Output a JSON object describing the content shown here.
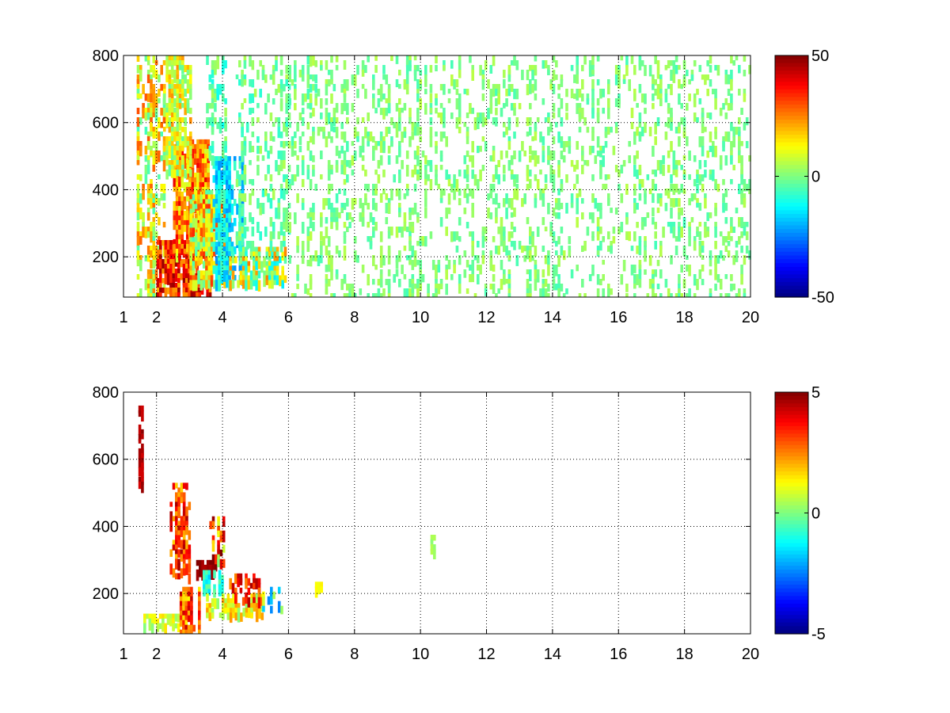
{
  "chart_data": [
    {
      "type": "heatmap",
      "title": "",
      "xlabel": "",
      "ylabel": "",
      "xlim": [
        1,
        20
      ],
      "ylim": [
        80,
        800
      ],
      "x_ticks": [
        "1",
        "2",
        "4",
        "6",
        "8",
        "10",
        "12",
        "14",
        "16",
        "18",
        "20"
      ],
      "x_tick_values": [
        1,
        2,
        4,
        6,
        8,
        10,
        12,
        14,
        16,
        18,
        20
      ],
      "y_ticks": [
        "200",
        "400",
        "600",
        "800"
      ],
      "y_tick_values": [
        200,
        400,
        600,
        800
      ],
      "grid": true,
      "colormap": "jet",
      "colorbar": {
        "range": [
          -50,
          50
        ],
        "ticks": [
          "50",
          "0",
          "-50"
        ],
        "tick_values": [
          50,
          0,
          -50
        ]
      },
      "regions": [
        {
          "x": [
            1.4,
            2.2
          ],
          "y": [
            90,
            800
          ],
          "value_mean": 12,
          "value_spread": 18,
          "density": 0.45
        },
        {
          "x": [
            2.0,
            3.6
          ],
          "y": [
            90,
            250
          ],
          "value_mean": 34,
          "value_spread": 14,
          "density": 0.95
        },
        {
          "x": [
            2.5,
            3.6
          ],
          "y": [
            200,
            550
          ],
          "value_mean": 24,
          "value_spread": 16,
          "density": 0.85
        },
        {
          "x": [
            2.2,
            3.0
          ],
          "y": [
            450,
            800
          ],
          "value_mean": 10,
          "value_spread": 14,
          "density": 0.65
        },
        {
          "x": [
            3.0,
            4.2
          ],
          "y": [
            130,
            400
          ],
          "value_mean": 14,
          "value_spread": 20,
          "density": 0.8
        },
        {
          "x": [
            3.7,
            4.6
          ],
          "y": [
            130,
            500
          ],
          "value_mean": -14,
          "value_spread": 10,
          "density": 0.65
        },
        {
          "x": [
            4.2,
            5.9
          ],
          "y": [
            120,
            230
          ],
          "value_mean": 6,
          "value_spread": 20,
          "density": 0.7
        },
        {
          "x": [
            3.5,
            4.1
          ],
          "y": [
            500,
            800
          ],
          "value_mean": -4,
          "value_spread": 8,
          "density": 0.45
        },
        {
          "x": [
            4.4,
            6.0
          ],
          "y": [
            240,
            800
          ],
          "value_mean": -2,
          "value_spread": 7,
          "density": 0.22
        },
        {
          "x": [
            6.0,
            20.0
          ],
          "y": [
            80,
            800
          ],
          "value_mean": 0,
          "value_spread": 6,
          "density": 0.2
        }
      ]
    },
    {
      "type": "heatmap",
      "title": "",
      "xlabel": "",
      "ylabel": "",
      "xlim": [
        1,
        20
      ],
      "ylim": [
        80,
        800
      ],
      "x_ticks": [
        "1",
        "2",
        "4",
        "6",
        "8",
        "10",
        "12",
        "14",
        "16",
        "18",
        "20"
      ],
      "x_tick_values": [
        1,
        2,
        4,
        6,
        8,
        10,
        12,
        14,
        16,
        18,
        20
      ],
      "y_ticks": [
        "200",
        "400",
        "600",
        "800"
      ],
      "y_tick_values": [
        200,
        400,
        600,
        800
      ],
      "grid": true,
      "colormap": "jet",
      "colorbar": {
        "range": [
          -5,
          5
        ],
        "ticks": [
          "5",
          "0",
          "-5"
        ],
        "tick_values": [
          5,
          0,
          -5
        ]
      },
      "regions": [
        {
          "x": [
            1.45,
            1.6
          ],
          "y": [
            520,
            760
          ],
          "value_mean": 4.5,
          "value_spread": 0.4,
          "density": 0.5
        },
        {
          "x": [
            1.6,
            2.7
          ],
          "y": [
            100,
            140
          ],
          "value_mean": 0.8,
          "value_spread": 0.8,
          "density": 0.7
        },
        {
          "x": [
            2.4,
            3.0
          ],
          "y": [
            250,
            530
          ],
          "value_mean": 3.2,
          "value_spread": 1.5,
          "density": 0.55
        },
        {
          "x": [
            2.7,
            3.3
          ],
          "y": [
            80,
            220
          ],
          "value_mean": 2.8,
          "value_spread": 1.5,
          "density": 0.75
        },
        {
          "x": [
            3.2,
            3.8
          ],
          "y": [
            270,
            300
          ],
          "value_mean": 4.8,
          "value_spread": 0.3,
          "density": 0.8
        },
        {
          "x": [
            3.4,
            4.0
          ],
          "y": [
            200,
            270
          ],
          "value_mean": -1.0,
          "value_spread": 0.8,
          "density": 0.7
        },
        {
          "x": [
            3.6,
            4.0
          ],
          "y": [
            300,
            430
          ],
          "value_mean": 2.5,
          "value_spread": 3.0,
          "density": 0.5
        },
        {
          "x": [
            3.5,
            5.2
          ],
          "y": [
            140,
            200
          ],
          "value_mean": 1.2,
          "value_spread": 1.2,
          "density": 0.6
        },
        {
          "x": [
            4.2,
            5.2
          ],
          "y": [
            180,
            260
          ],
          "value_mean": 3.5,
          "value_spread": 1.2,
          "density": 0.45
        },
        {
          "x": [
            5.2,
            5.9
          ],
          "y": [
            160,
            220
          ],
          "value_mean": -0.5,
          "value_spread": 2.0,
          "density": 0.35
        },
        {
          "x": [
            6.8,
            7.0
          ],
          "y": [
            220,
            235
          ],
          "value_mean": 1.2,
          "value_spread": 0.2,
          "density": 0.8
        },
        {
          "x": [
            10.3,
            10.45
          ],
          "y": [
            320,
            375
          ],
          "value_mean": 0.3,
          "value_spread": 0.2,
          "density": 0.9
        }
      ]
    }
  ]
}
